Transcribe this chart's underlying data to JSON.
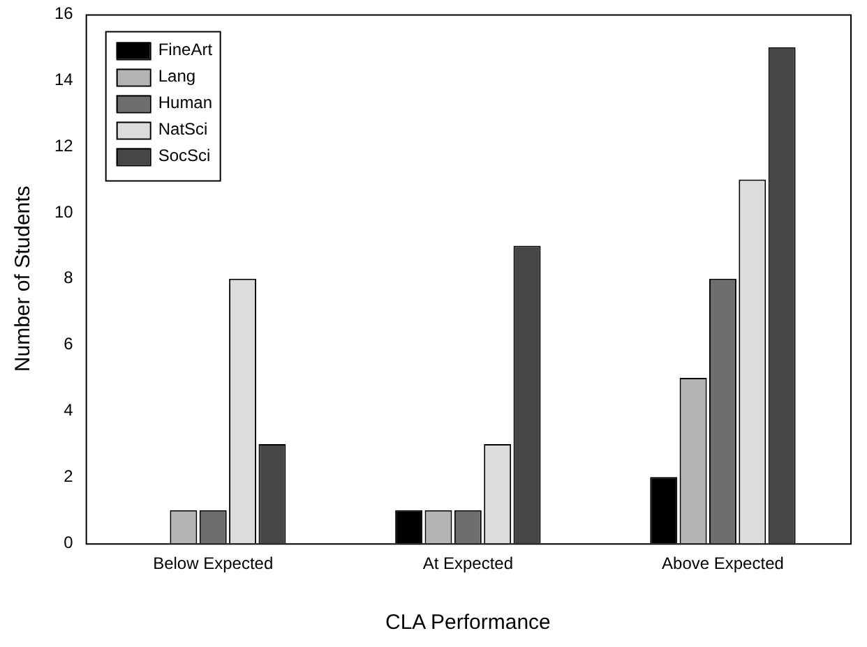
{
  "chart_data": {
    "type": "bar",
    "xlabel": "CLA Performance",
    "ylabel": "Number of Students",
    "categories": [
      "Below Expected",
      "At Expected",
      "Above Expected"
    ],
    "series": [
      {
        "name": "FineArt",
        "color": "#000000",
        "values": [
          0,
          1,
          2
        ]
      },
      {
        "name": "Lang",
        "color": "#b4b4b4",
        "values": [
          1,
          1,
          5
        ]
      },
      {
        "name": "Human",
        "color": "#6e6e6e",
        "values": [
          1,
          1,
          8
        ]
      },
      {
        "name": "NatSci",
        "color": "#dcdcdc",
        "values": [
          8,
          3,
          11
        ]
      },
      {
        "name": "SocSci",
        "color": "#464646",
        "values": [
          3,
          9,
          15
        ]
      }
    ],
    "ylim": [
      0,
      16
    ],
    "yticks": [
      0,
      2,
      4,
      6,
      8,
      10,
      12,
      14,
      16
    ],
    "legend": "top left"
  }
}
